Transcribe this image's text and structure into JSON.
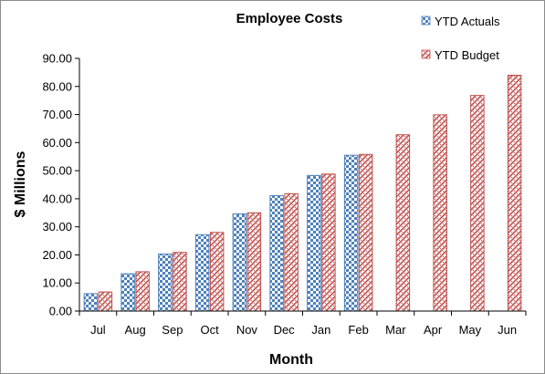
{
  "chart_data": {
    "type": "bar",
    "title": "Employee Costs",
    "xlabel": "Month",
    "ylabel": "$ Millions",
    "categories": [
      "Jul",
      "Aug",
      "Sep",
      "Oct",
      "Nov",
      "Dec",
      "Jan",
      "Feb",
      "Mar",
      "Apr",
      "May",
      "Jun"
    ],
    "series": [
      {
        "name": "YTD Actuals",
        "color": "#4f81bd",
        "pattern": "checkerboard",
        "values": [
          6.2,
          13.3,
          20.3,
          27.2,
          34.6,
          41.1,
          48.3,
          55.5,
          null,
          null,
          null,
          null
        ]
      },
      {
        "name": "YTD Budget",
        "color": "#c0504d",
        "pattern": "diagonal-weave",
        "values": [
          6.8,
          14.0,
          20.9,
          28.0,
          35.0,
          41.8,
          48.8,
          55.8,
          62.8,
          69.9,
          76.8,
          84.0
        ]
      }
    ],
    "ylim": [
      0,
      90
    ],
    "ytick_step": 10,
    "ytick_format": "0.00",
    "grid": false,
    "legend_position": "top-right"
  }
}
